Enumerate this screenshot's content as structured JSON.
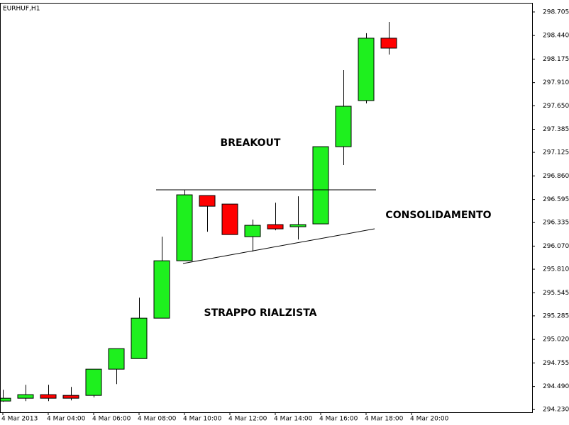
{
  "chart_data": {
    "type": "candlestick",
    "title": "EURHUF,H1",
    "categories": [
      "4 Mar 2013",
      null,
      "4 Mar 04:00",
      null,
      "4 Mar 06:00",
      null,
      "4 Mar 08:00",
      null,
      "4 Mar 10:00",
      null,
      "4 Mar 12:00",
      null,
      "4 Mar 14:00",
      null,
      "4 Mar 16:00",
      null,
      "4 Mar 18:00",
      null,
      "4 Mar 20:00"
    ],
    "open": [
      294.326,
      294.358,
      294.398,
      294.39,
      294.39,
      294.685,
      294.804,
      295.259,
      295.905,
      296.639,
      296.543,
      296.176,
      296.312,
      296.288,
      296.32,
      297.189,
      297.708,
      298.41,
      null
    ],
    "high": [
      294.453,
      294.509,
      294.509,
      294.485,
      294.685,
      294.916,
      295.49,
      296.176,
      296.703,
      296.639,
      296.543,
      296.368,
      296.559,
      296.631,
      297.189,
      298.051,
      298.466,
      298.593,
      null
    ],
    "low": [
      294.318,
      294.326,
      294.326,
      294.334,
      294.366,
      294.517,
      294.804,
      295.259,
      295.905,
      296.232,
      296.2,
      296.009,
      296.248,
      296.144,
      296.32,
      296.982,
      297.676,
      298.226,
      null
    ],
    "close": [
      294.358,
      294.398,
      294.358,
      294.358,
      294.685,
      294.916,
      295.259,
      295.905,
      296.647,
      296.519,
      296.2,
      296.304,
      296.264,
      296.312,
      297.189,
      297.644,
      298.41,
      298.298,
      null
    ],
    "up_color": "#1ef01e",
    "down_color": "#ff0000",
    "ylim": [
      294.2,
      298.8
    ],
    "yticks": [
      298.705,
      {
        "value": 298.44,
        "label": "298.440"
      },
      298.175,
      {
        "value": 297.91,
        "label": "297.910"
      },
      {
        "value": 297.65,
        "label": "297.650"
      },
      297.385,
      297.125,
      {
        "value": 296.86,
        "label": "296.860"
      },
      296.595,
      296.335,
      {
        "value": 296.07,
        "label": "296.070"
      },
      {
        "value": 295.81,
        "label": "295.810"
      },
      295.545,
      295.285,
      {
        "value": 295.02,
        "label": "295.020"
      },
      294.755,
      {
        "value": 294.49,
        "label": "294.490"
      },
      {
        "value": 294.23,
        "label": "294.230"
      }
    ],
    "annotations": [
      "BREAKOUT",
      "CONSOLIDAMENTO",
      "STRAPPO RIALZISTA"
    ]
  }
}
